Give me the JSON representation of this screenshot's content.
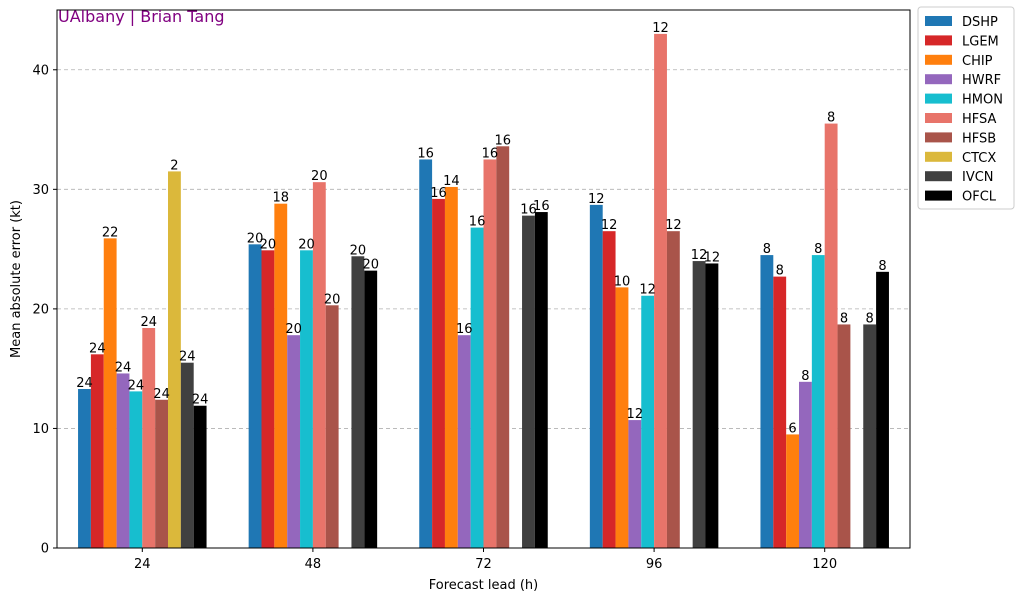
{
  "credit": {
    "text": "UAlbany | Brian Tang",
    "color": "#800080"
  },
  "chart_data": {
    "type": "bar",
    "xlabel": "Forecast lead (h)",
    "ylabel": "Mean absolute error (kt)",
    "ylim": [
      0,
      45
    ],
    "yticks": [
      0,
      10,
      20,
      30,
      40
    ],
    "grid": "y-dashed",
    "legend_position": "outside-top-right",
    "categories": [
      "24",
      "48",
      "72",
      "96",
      "120"
    ],
    "series": [
      {
        "name": "DSHP",
        "color": "#1f77b4",
        "values": [
          13.3,
          25.4,
          32.5,
          28.7,
          24.5
        ],
        "labels": [
          "24",
          "20",
          "16",
          "12",
          "8"
        ]
      },
      {
        "name": "LGEM",
        "color": "#d62728",
        "values": [
          16.2,
          24.9,
          29.2,
          26.5,
          22.7
        ],
        "labels": [
          "24",
          "20",
          "16",
          "12",
          "8"
        ]
      },
      {
        "name": "CHIP",
        "color": "#ff7f0e",
        "values": [
          25.9,
          28.8,
          30.2,
          21.8,
          9.5
        ],
        "labels": [
          "22",
          "18",
          "14",
          "10",
          "6"
        ]
      },
      {
        "name": "HWRF",
        "color": "#9467bd",
        "values": [
          14.6,
          17.8,
          17.8,
          10.7,
          13.9
        ],
        "labels": [
          "24",
          "20",
          "16",
          "12",
          "8"
        ]
      },
      {
        "name": "HMON",
        "color": "#17becf",
        "values": [
          13.1,
          24.9,
          26.8,
          21.1,
          24.5
        ],
        "labels": [
          "24",
          "20",
          "16",
          "12",
          "8"
        ]
      },
      {
        "name": "HFSA",
        "color": "#e8746a",
        "values": [
          18.4,
          30.6,
          32.5,
          43.0,
          35.5
        ],
        "labels": [
          "24",
          "20",
          "16",
          "12",
          "8"
        ]
      },
      {
        "name": "HFSB",
        "color": "#a9544a",
        "values": [
          12.4,
          20.3,
          33.6,
          26.5,
          18.7
        ],
        "labels": [
          "24",
          "20",
          "16",
          "12",
          "8"
        ]
      },
      {
        "name": "CTCX",
        "color": "#dbb83b",
        "values": [
          31.5,
          null,
          null,
          null,
          null
        ],
        "labels": [
          "2",
          null,
          null,
          null,
          null
        ]
      },
      {
        "name": "IVCN",
        "color": "#404040",
        "values": [
          15.5,
          24.4,
          27.8,
          24.0,
          18.7
        ],
        "labels": [
          "24",
          "20",
          "16",
          "12",
          "8"
        ]
      },
      {
        "name": "OFCL",
        "color": "#000000",
        "values": [
          11.9,
          23.2,
          28.1,
          23.8,
          23.1
        ],
        "labels": [
          "24",
          "20",
          "16",
          "12",
          "8"
        ]
      }
    ]
  }
}
